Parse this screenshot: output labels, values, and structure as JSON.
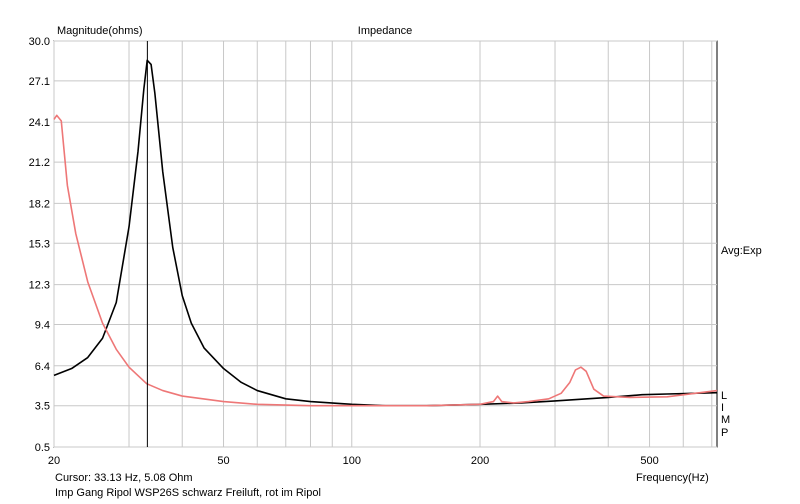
{
  "chart_data": {
    "type": "line",
    "title": "Impedance",
    "ylabel": "Magnitude(ohms)",
    "xlabel": "Frequency(Hz)",
    "x_scale": "log",
    "xlim": [
      20,
      720
    ],
    "ylim": [
      0.5,
      30.0
    ],
    "y_ticks": [
      "30.0",
      "27.1",
      "24.1",
      "21.2",
      "18.2",
      "15.3",
      "12.3",
      "9.4",
      "6.4",
      "3.5",
      "0.5"
    ],
    "x_tick_labels": [
      {
        "value": 20,
        "label": "20"
      },
      {
        "value": 50,
        "label": "50"
      },
      {
        "value": 100,
        "label": "100"
      },
      {
        "value": 200,
        "label": "200"
      },
      {
        "value": 500,
        "label": "500"
      }
    ],
    "x_grid": [
      20,
      30,
      40,
      50,
      60,
      70,
      80,
      90,
      100,
      200,
      300,
      400,
      500,
      600,
      700
    ],
    "grid": true,
    "side_label": "Avg:Exp",
    "side_letters": [
      "L",
      "I",
      "M",
      "P"
    ],
    "cursor": {
      "x": 33.13,
      "text": "Cursor: 33.13 Hz, 5.08 Ohm"
    },
    "caption": "Imp Gang Ripol WSP26S schwarz Freiluft, rot im Ripol",
    "series": [
      {
        "color": "#000000",
        "points": [
          [
            20,
            5.7
          ],
          [
            22,
            6.2
          ],
          [
            24,
            7.0
          ],
          [
            26,
            8.4
          ],
          [
            28,
            11.0
          ],
          [
            30,
            16.5
          ],
          [
            31.5,
            22.0
          ],
          [
            32.5,
            26.5
          ],
          [
            33.1,
            28.6
          ],
          [
            33.8,
            28.3
          ],
          [
            34.5,
            26.2
          ],
          [
            36,
            20.5
          ],
          [
            38,
            15.0
          ],
          [
            40,
            11.5
          ],
          [
            42,
            9.5
          ],
          [
            45,
            7.7
          ],
          [
            50,
            6.2
          ],
          [
            55,
            5.2
          ],
          [
            60,
            4.6
          ],
          [
            70,
            4.0
          ],
          [
            80,
            3.8
          ],
          [
            100,
            3.6
          ],
          [
            120,
            3.5
          ],
          [
            150,
            3.5
          ],
          [
            200,
            3.6
          ],
          [
            250,
            3.7
          ],
          [
            300,
            3.85
          ],
          [
            400,
            4.1
          ],
          [
            480,
            4.3
          ],
          [
            550,
            4.35
          ],
          [
            720,
            4.45
          ]
        ]
      },
      {
        "color": "#ee7777",
        "points": [
          [
            20,
            24.3
          ],
          [
            20.3,
            24.6
          ],
          [
            20.8,
            24.2
          ],
          [
            21.5,
            19.5
          ],
          [
            22.5,
            16.0
          ],
          [
            24,
            12.5
          ],
          [
            26,
            9.5
          ],
          [
            28,
            7.6
          ],
          [
            30,
            6.3
          ],
          [
            33,
            5.1
          ],
          [
            36,
            4.6
          ],
          [
            40,
            4.2
          ],
          [
            50,
            3.8
          ],
          [
            60,
            3.6
          ],
          [
            80,
            3.5
          ],
          [
            100,
            3.5
          ],
          [
            150,
            3.5
          ],
          [
            200,
            3.6
          ],
          [
            215,
            3.8
          ],
          [
            220,
            4.2
          ],
          [
            225,
            3.8
          ],
          [
            240,
            3.7
          ],
          [
            260,
            3.8
          ],
          [
            290,
            4.0
          ],
          [
            310,
            4.4
          ],
          [
            325,
            5.2
          ],
          [
            335,
            6.1
          ],
          [
            345,
            6.3
          ],
          [
            355,
            6.0
          ],
          [
            370,
            4.7
          ],
          [
            390,
            4.2
          ],
          [
            450,
            4.1
          ],
          [
            550,
            4.15
          ],
          [
            720,
            4.6
          ]
        ]
      }
    ]
  }
}
